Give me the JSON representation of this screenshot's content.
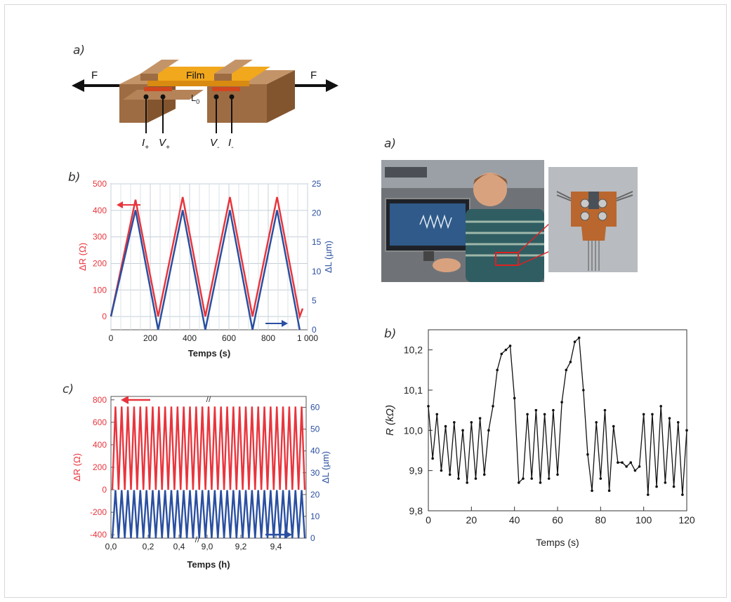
{
  "figure": {
    "panel_labels": {
      "left_a": "a)",
      "left_b": "b)",
      "left_c": "c)",
      "right_a": "a)",
      "right_b": "b)"
    },
    "schematic": {
      "film_label": "Film",
      "length_label": "L",
      "length_sub": "0",
      "force_left": "F",
      "force_right": "F",
      "probes": [
        {
          "main": "I",
          "sub": "+"
        },
        {
          "main": "V",
          "sub": "+"
        },
        {
          "main": "V",
          "sub": "-"
        },
        {
          "main": "I",
          "sub": "-"
        }
      ]
    },
    "colors": {
      "resistance": "#e8353d",
      "displacement": "#2a4fa0",
      "sample_trace": "#111111",
      "wood": "#a9774a",
      "film": "#f2a81d",
      "electrode": "#d1461e"
    }
  },
  "chart_data": [
    {
      "id": "left_b",
      "type": "line",
      "title": "",
      "xlabel": "Temps (s)",
      "ylabel_left": "ΔR (Ω)",
      "ylabel_right": "ΔL (µm)",
      "xlim": [
        0,
        1000
      ],
      "ylim_left": [
        -50,
        500
      ],
      "ylim_right": [
        0,
        25
      ],
      "x_ticks": [
        "0",
        "200",
        "400",
        "600",
        "800",
        "1 000"
      ],
      "y_left_ticks": [
        "0",
        "100",
        "200",
        "300",
        "400",
        "500"
      ],
      "y_right_ticks": [
        "0",
        "5",
        "10",
        "15",
        "20",
        "25"
      ],
      "grid": true,
      "series": [
        {
          "axis": "left",
          "color": "#e8353d",
          "x": [
            0,
            125,
            240,
            365,
            480,
            605,
            720,
            845,
            960,
            975
          ],
          "y": [
            0,
            440,
            0,
            450,
            0,
            450,
            0,
            450,
            0,
            30
          ]
        },
        {
          "axis": "right",
          "color": "#2a4fa0",
          "x": [
            0,
            125,
            240,
            365,
            480,
            605,
            720,
            845,
            960
          ],
          "y": [
            2.3,
            20.5,
            0,
            20.5,
            0,
            20.5,
            0,
            20.5,
            0
          ]
        }
      ]
    },
    {
      "id": "left_c",
      "type": "line",
      "title": "",
      "xlabel": "Temps (h)",
      "ylabel_left": "ΔR (Ω)",
      "ylabel_right": "ΔL (µm)",
      "ylim_left": [
        -430,
        830
      ],
      "ylim_right": [
        0,
        65
      ],
      "x_ticks": [
        "0,0",
        "0,2",
        "0,4",
        "9,0",
        "9,2",
        "9,4"
      ],
      "y_left_ticks": [
        "-400",
        "-200",
        "0",
        "200",
        "400",
        "600",
        "800"
      ],
      "y_right_ticks": [
        "0",
        "10",
        "20",
        "30",
        "40",
        "50",
        "60"
      ],
      "axis_break": true,
      "cycles": 31,
      "series": [
        {
          "axis": "left",
          "color": "#e8353d",
          "min": 0,
          "max": 740
        },
        {
          "axis": "right",
          "color": "#2a4fa0",
          "min": 0,
          "max": 22
        }
      ]
    },
    {
      "id": "right_b",
      "type": "line",
      "title": "",
      "xlabel": "Temps (s)",
      "ylabel": "R (kΩ)",
      "xlim": [
        0,
        120
      ],
      "ylim": [
        9.8,
        10.25
      ],
      "x_ticks": [
        "0",
        "20",
        "40",
        "60",
        "80",
        "100",
        "120"
      ],
      "y_ticks": [
        "9,8",
        "9,9",
        "10,0",
        "10,1",
        "10,2"
      ],
      "series": [
        {
          "color": "#111111",
          "x": [
            0,
            2,
            4,
            6,
            8,
            10,
            12,
            14,
            16,
            18,
            20,
            22,
            24,
            26,
            28,
            30,
            32,
            34,
            36,
            38,
            40,
            42,
            44,
            46,
            48,
            50,
            52,
            54,
            56,
            58,
            60,
            62,
            64,
            66,
            68,
            70,
            72,
            74,
            76,
            78,
            80,
            82,
            84,
            86,
            88,
            90,
            92,
            94,
            96,
            98,
            100,
            102,
            104,
            106,
            108,
            110,
            112,
            114,
            116,
            118,
            120
          ],
          "y": [
            10.06,
            9.93,
            10.04,
            9.9,
            10.01,
            9.89,
            10.02,
            9.88,
            10.0,
            9.87,
            10.02,
            9.88,
            10.03,
            9.89,
            10.0,
            10.06,
            10.15,
            10.19,
            10.2,
            10.21,
            10.08,
            9.87,
            9.88,
            10.04,
            9.88,
            10.05,
            9.87,
            10.04,
            9.88,
            10.05,
            9.89,
            10.07,
            10.15,
            10.17,
            10.22,
            10.23,
            10.1,
            9.94,
            9.85,
            10.02,
            9.88,
            10.05,
            9.85,
            10.01,
            9.92,
            9.92,
            9.91,
            9.92,
            9.9,
            9.91,
            10.04,
            9.84,
            10.04,
            9.86,
            10.06,
            9.87,
            10.03,
            9.86,
            10.02,
            9.84,
            10.0
          ]
        }
      ]
    }
  ]
}
